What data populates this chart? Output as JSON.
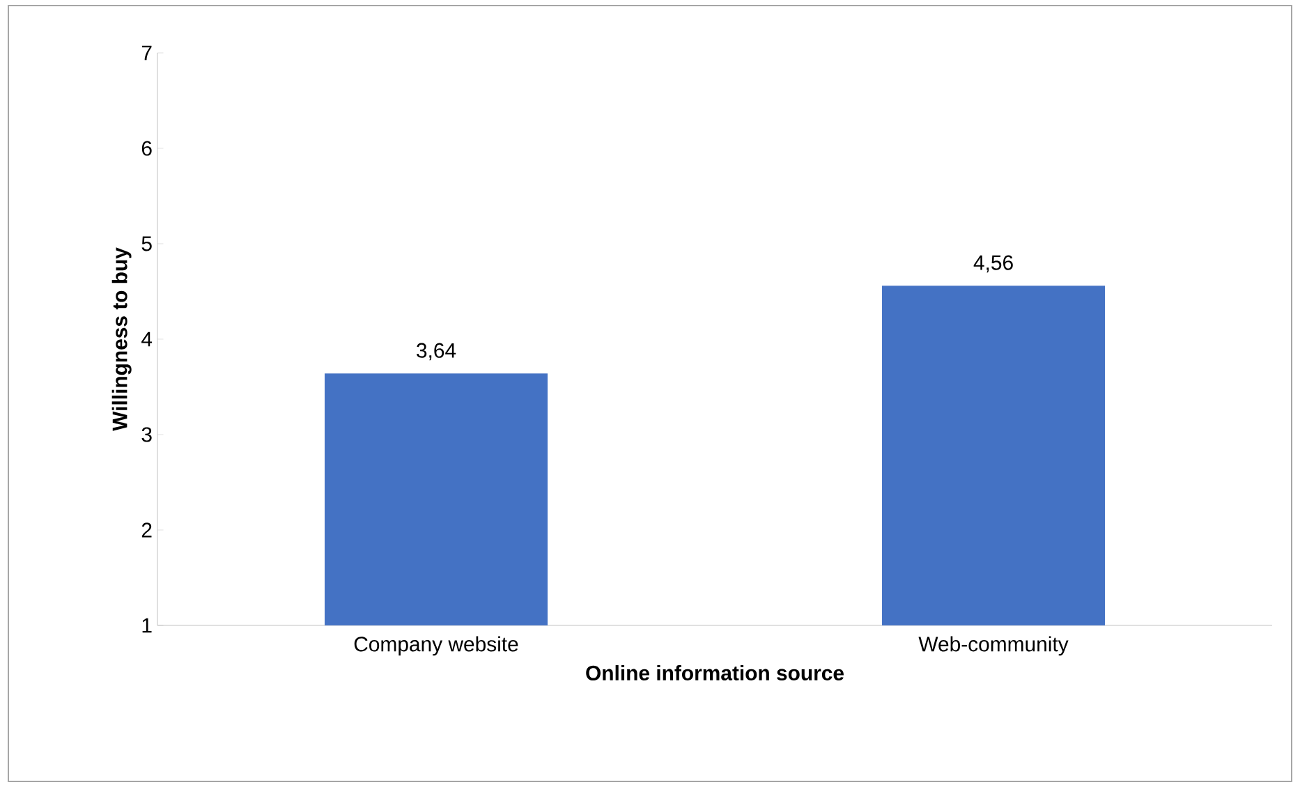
{
  "chart_data": {
    "type": "bar",
    "xlabel": "Online information source",
    "ylabel": "Willingness to buy",
    "categories": [
      "Company website",
      "Web-community"
    ],
    "values": [
      3.64,
      4.56
    ],
    "color": "#4472c4",
    "value_labels": [
      "3,64",
      "4,56"
    ],
    "ylim": [
      1,
      7
    ],
    "yticks": [
      1,
      2,
      3,
      4,
      5,
      6,
      7
    ],
    "grid": false
  }
}
